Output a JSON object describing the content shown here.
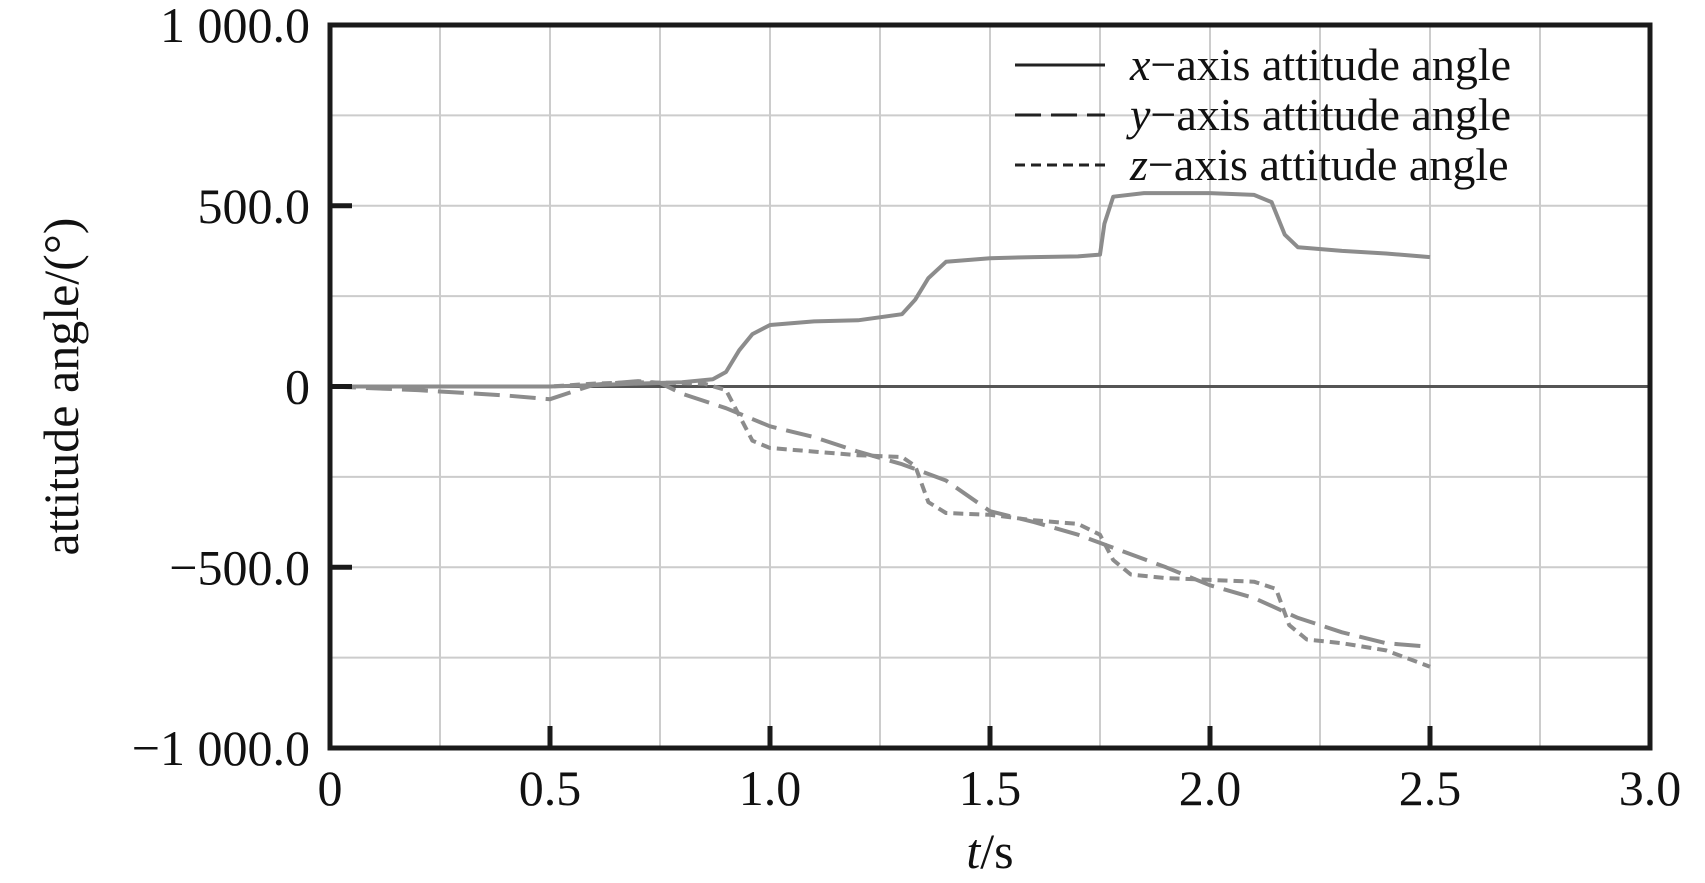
{
  "chart_data": {
    "type": "line",
    "title": "",
    "xlabel_italic": "t",
    "xlabel_rest": "/s",
    "ylabel": "attitude angle/(°)",
    "xlim": [
      0,
      3.0
    ],
    "ylim": [
      -1000,
      1000
    ],
    "grid": true,
    "legend_position": "top-right",
    "x_ticks": [
      {
        "value": 0,
        "label": "0"
      },
      {
        "value": 0.5,
        "label": "0.5"
      },
      {
        "value": 1.0,
        "label": "1.0"
      },
      {
        "value": 1.5,
        "label": "1.5"
      },
      {
        "value": 2.0,
        "label": "2.0"
      },
      {
        "value": 2.5,
        "label": "2.5"
      },
      {
        "value": 3.0,
        "label": "3.0"
      }
    ],
    "y_ticks": [
      {
        "value": 1000,
        "label": "1 000.0"
      },
      {
        "value": 500,
        "label": "500.0"
      },
      {
        "value": 0,
        "label": "0"
      },
      {
        "value": -500,
        "label": "−500.0"
      },
      {
        "value": -1000,
        "label": "−1 000.0"
      }
    ],
    "series": [
      {
        "name_italic": "x",
        "name_rest": "−axis attitude angle",
        "style": "solid",
        "color": "#8c8c8c",
        "points": [
          [
            0,
            0
          ],
          [
            0.5,
            0
          ],
          [
            0.6,
            4
          ],
          [
            0.7,
            8
          ],
          [
            0.8,
            12
          ],
          [
            0.87,
            20
          ],
          [
            0.9,
            40
          ],
          [
            0.93,
            100
          ],
          [
            0.96,
            145
          ],
          [
            1.0,
            170
          ],
          [
            1.1,
            180
          ],
          [
            1.2,
            183
          ],
          [
            1.3,
            200
          ],
          [
            1.33,
            240
          ],
          [
            1.36,
            300
          ],
          [
            1.4,
            345
          ],
          [
            1.5,
            355
          ],
          [
            1.6,
            358
          ],
          [
            1.7,
            360
          ],
          [
            1.75,
            365
          ],
          [
            1.76,
            450
          ],
          [
            1.78,
            525
          ],
          [
            1.85,
            535
          ],
          [
            2.0,
            535
          ],
          [
            2.1,
            530
          ],
          [
            2.14,
            510
          ],
          [
            2.17,
            420
          ],
          [
            2.2,
            385
          ],
          [
            2.3,
            375
          ],
          [
            2.4,
            368
          ],
          [
            2.5,
            358
          ]
        ]
      },
      {
        "name_italic": "y",
        "name_rest": "−axis attitude angle",
        "style": "dashed",
        "color": "#8c8c8c",
        "points": [
          [
            0,
            0
          ],
          [
            0.2,
            -10
          ],
          [
            0.4,
            -25
          ],
          [
            0.5,
            -35
          ],
          [
            0.55,
            -15
          ],
          [
            0.6,
            5
          ],
          [
            0.7,
            15
          ],
          [
            0.75,
            10
          ],
          [
            0.8,
            -20
          ],
          [
            0.9,
            -60
          ],
          [
            1.0,
            -110
          ],
          [
            1.1,
            -140
          ],
          [
            1.2,
            -180
          ],
          [
            1.3,
            -215
          ],
          [
            1.4,
            -260
          ],
          [
            1.5,
            -345
          ],
          [
            1.6,
            -375
          ],
          [
            1.7,
            -410
          ],
          [
            1.8,
            -455
          ],
          [
            1.9,
            -500
          ],
          [
            2.0,
            -550
          ],
          [
            2.1,
            -585
          ],
          [
            2.2,
            -640
          ],
          [
            2.3,
            -680
          ],
          [
            2.4,
            -710
          ],
          [
            2.5,
            -720
          ]
        ]
      },
      {
        "name_italic": "z",
        "name_rest": "−axis attitude angle",
        "style": "short-dashed",
        "color": "#8c8c8c",
        "points": [
          [
            0,
            0
          ],
          [
            0.5,
            0
          ],
          [
            0.6,
            8
          ],
          [
            0.7,
            12
          ],
          [
            0.85,
            8
          ],
          [
            0.9,
            -10
          ],
          [
            0.93,
            -80
          ],
          [
            0.96,
            -150
          ],
          [
            1.0,
            -170
          ],
          [
            1.1,
            -180
          ],
          [
            1.2,
            -190
          ],
          [
            1.3,
            -195
          ],
          [
            1.33,
            -220
          ],
          [
            1.36,
            -320
          ],
          [
            1.4,
            -350
          ],
          [
            1.5,
            -355
          ],
          [
            1.6,
            -370
          ],
          [
            1.7,
            -380
          ],
          [
            1.75,
            -410
          ],
          [
            1.78,
            -480
          ],
          [
            1.82,
            -520
          ],
          [
            1.9,
            -530
          ],
          [
            2.0,
            -535
          ],
          [
            2.1,
            -540
          ],
          [
            2.15,
            -560
          ],
          [
            2.18,
            -660
          ],
          [
            2.22,
            -700
          ],
          [
            2.3,
            -710
          ],
          [
            2.4,
            -730
          ],
          [
            2.5,
            -775
          ]
        ]
      }
    ]
  },
  "colors": {
    "series": "#8c8c8c",
    "grid": "#cccccc",
    "axis": "#1a1a1a",
    "zero_line": "#555555",
    "legend_line": "#222222"
  }
}
